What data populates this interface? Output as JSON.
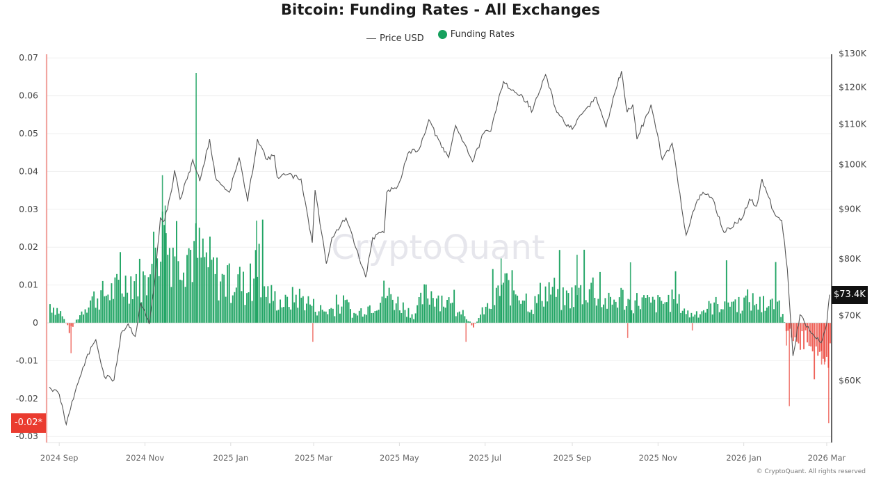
{
  "title": "Bitcoin: Funding Rates - All Exchanges",
  "legend": [
    {
      "label": "Price USD",
      "type": "line",
      "color": "#666666"
    },
    {
      "label": "Funding Rates",
      "type": "dot",
      "color": "#16a05d"
    }
  ],
  "watermark": "CryptoQuant",
  "copyright": "© CryptoQuant. All rights reserved",
  "badges": {
    "current_price": "$73.4K",
    "current_funding": "-0.02*"
  },
  "colors": {
    "positive": "#16a05d",
    "negative": "#ea3b2f",
    "price_line": "#555555",
    "left_axis_line": "#f1a5a0",
    "right_axis_line": "#222222",
    "grid": "#efefef"
  },
  "chart_data": {
    "type": "bar+line",
    "title": "Bitcoin: Funding Rates - All Exchanges",
    "x_range": [
      "2024 Aug",
      "2026 Mar"
    ],
    "x_ticks": [
      "2024 Sep",
      "2024 Nov",
      "2025 Jan",
      "2025 Mar",
      "2025 May",
      "2025 Jul",
      "2025 Sep",
      "2025 Nov",
      "2026 Jan",
      "2026 Mar"
    ],
    "left_axis": {
      "label": "Funding Rates",
      "ticks": [
        0.07,
        0.06,
        0.05,
        0.04,
        0.03,
        0.02,
        0.01,
        0,
        -0.01,
        -0.02,
        -0.03
      ],
      "ylim": [
        -0.031,
        0.07
      ]
    },
    "right_axis": {
      "label": "Price USD",
      "scale": "log",
      "ticks": [
        "$130K",
        "$120K",
        "$110K",
        "$100K",
        "$90K",
        "$80K",
        "$70K",
        "$60K"
      ],
      "tick_values": [
        130000,
        120000,
        110000,
        100000,
        90000,
        80000,
        70000,
        60000
      ]
    },
    "legend_position": "top",
    "grid": true,
    "series": [
      {
        "name": "Price USD",
        "type": "line",
        "points": [
          [
            "2024-08-25",
            59000
          ],
          [
            "2024-09-01",
            58000
          ],
          [
            "2024-09-06",
            54000
          ],
          [
            "2024-09-10",
            57000
          ],
          [
            "2024-09-20",
            63000
          ],
          [
            "2024-09-27",
            66000
          ],
          [
            "2024-10-03",
            60500
          ],
          [
            "2024-10-10",
            60000
          ],
          [
            "2024-10-15",
            67000
          ],
          [
            "2024-10-20",
            68500
          ],
          [
            "2024-10-25",
            66500
          ],
          [
            "2024-10-29",
            72000
          ],
          [
            "2024-11-04",
            68500
          ],
          [
            "2024-11-08",
            76000
          ],
          [
            "2024-11-12",
            88000
          ],
          [
            "2024-11-15",
            87500
          ],
          [
            "2024-11-20",
            94000
          ],
          [
            "2024-11-22",
            98500
          ],
          [
            "2024-11-26",
            92000
          ],
          [
            "2024-12-01",
            96500
          ],
          [
            "2024-12-05",
            101000
          ],
          [
            "2024-12-10",
            96000
          ],
          [
            "2024-12-17",
            106000
          ],
          [
            "2024-12-21",
            97000
          ],
          [
            "2024-12-26",
            95000
          ],
          [
            "2024-12-31",
            93500
          ],
          [
            "2025-01-07",
            101500
          ],
          [
            "2025-01-13",
            91500
          ],
          [
            "2025-01-20",
            106000
          ],
          [
            "2025-01-27",
            101000
          ],
          [
            "2025-02-01",
            102000
          ],
          [
            "2025-02-03",
            97000
          ],
          [
            "2025-02-10",
            97500
          ],
          [
            "2025-02-20",
            96500
          ],
          [
            "2025-02-25",
            88000
          ],
          [
            "2025-02-28",
            83000
          ],
          [
            "2025-03-02",
            94000
          ],
          [
            "2025-03-10",
            79000
          ],
          [
            "2025-03-14",
            84000
          ],
          [
            "2025-03-24",
            88000
          ],
          [
            "2025-03-31",
            82000
          ],
          [
            "2025-04-07",
            76500
          ],
          [
            "2025-04-12",
            84000
          ],
          [
            "2025-04-20",
            85000
          ],
          [
            "2025-04-22",
            93500
          ],
          [
            "2025-04-30",
            95000
          ],
          [
            "2025-05-08",
            103000
          ],
          [
            "2025-05-15",
            103500
          ],
          [
            "2025-05-22",
            111000
          ],
          [
            "2025-05-31",
            104000
          ],
          [
            "2025-06-05",
            101500
          ],
          [
            "2025-06-10",
            109500
          ],
          [
            "2025-06-17",
            104500
          ],
          [
            "2025-06-22",
            100500
          ],
          [
            "2025-06-30",
            107500
          ],
          [
            "2025-07-05",
            108000
          ],
          [
            "2025-07-11",
            117500
          ],
          [
            "2025-07-14",
            121500
          ],
          [
            "2025-07-22",
            118500
          ],
          [
            "2025-07-31",
            116000
          ],
          [
            "2025-08-03",
            113000
          ],
          [
            "2025-08-13",
            123500
          ],
          [
            "2025-08-20",
            114000
          ],
          [
            "2025-08-26",
            110500
          ],
          [
            "2025-09-01",
            108500
          ],
          [
            "2025-09-10",
            113500
          ],
          [
            "2025-09-18",
            117000
          ],
          [
            "2025-09-25",
            109000
          ],
          [
            "2025-10-01",
            118000
          ],
          [
            "2025-10-06",
            124500
          ],
          [
            "2025-10-10",
            113000
          ],
          [
            "2025-10-14",
            115000
          ],
          [
            "2025-10-17",
            106000
          ],
          [
            "2025-10-27",
            115000
          ],
          [
            "2025-11-04",
            101000
          ],
          [
            "2025-11-11",
            105000
          ],
          [
            "2025-11-21",
            84500
          ],
          [
            "2025-11-28",
            91000
          ],
          [
            "2025-12-03",
            93500
          ],
          [
            "2025-12-10",
            92000
          ],
          [
            "2025-12-18",
            85000
          ],
          [
            "2025-12-31",
            88000
          ],
          [
            "2026-01-05",
            92000
          ],
          [
            "2026-01-10",
            90500
          ],
          [
            "2026-01-14",
            96500
          ],
          [
            "2026-01-22",
            89500
          ],
          [
            "2026-01-28",
            87500
          ],
          [
            "2026-02-01",
            78000
          ],
          [
            "2026-02-05",
            63500
          ],
          [
            "2026-02-10",
            70000
          ],
          [
            "2026-02-18",
            67000
          ],
          [
            "2026-02-25",
            65500
          ],
          [
            "2026-03-01",
            68500
          ],
          [
            "2026-03-03",
            73400
          ]
        ]
      },
      {
        "name": "Funding Rates",
        "type": "bar",
        "positive_color": "#16a05d",
        "negative_color": "#ea3b2f",
        "peak": {
          "date": "2024-12-07",
          "value": 0.066
        },
        "trough": {
          "date": "2026-03-02",
          "value": -0.0265
        },
        "weekly_approx": [
          [
            "2024-08-25",
            0.005
          ],
          [
            "2024-09-01",
            0.003
          ],
          [
            "2024-09-08",
            -0.002
          ],
          [
            "2024-09-15",
            0.002
          ],
          [
            "2024-09-22",
            0.006
          ],
          [
            "2024-09-29",
            0.007
          ],
          [
            "2024-10-06",
            0.008
          ],
          [
            "2024-10-13",
            0.009
          ],
          [
            "2024-10-20",
            0.011
          ],
          [
            "2024-10-27",
            0.012
          ],
          [
            "2024-11-03",
            0.01
          ],
          [
            "2024-11-10",
            0.024
          ],
          [
            "2024-11-17",
            0.02
          ],
          [
            "2024-11-24",
            0.022
          ],
          [
            "2024-12-01",
            0.019
          ],
          [
            "2024-12-08",
            0.018
          ],
          [
            "2024-12-15",
            0.016
          ],
          [
            "2024-12-22",
            0.012
          ],
          [
            "2024-12-29",
            0.01
          ],
          [
            "2025-01-05",
            0.012
          ],
          [
            "2025-01-12",
            0.008
          ],
          [
            "2025-01-19",
            0.014
          ],
          [
            "2025-01-26",
            0.008
          ],
          [
            "2025-02-02",
            0.006
          ],
          [
            "2025-02-09",
            0.005
          ],
          [
            "2025-02-16",
            0.007
          ],
          [
            "2025-02-23",
            0.006
          ],
          [
            "2025-03-02",
            0.004
          ],
          [
            "2025-03-09",
            0.003
          ],
          [
            "2025-03-16",
            0.004
          ],
          [
            "2025-03-23",
            0.005
          ],
          [
            "2025-03-30",
            0.002
          ],
          [
            "2025-04-06",
            0.004
          ],
          [
            "2025-04-13",
            0.005
          ],
          [
            "2025-04-20",
            0.008
          ],
          [
            "2025-04-27",
            0.006
          ],
          [
            "2025-05-04",
            0.004
          ],
          [
            "2025-05-11",
            0.002
          ],
          [
            "2025-05-18",
            0.007
          ],
          [
            "2025-05-25",
            0.008
          ],
          [
            "2025-06-01",
            0.006
          ],
          [
            "2025-06-08",
            0.004
          ],
          [
            "2025-06-15",
            0.003
          ],
          [
            "2025-06-22",
            -0.001
          ],
          [
            "2025-06-29",
            0.003
          ],
          [
            "2025-07-06",
            0.005
          ],
          [
            "2025-07-13",
            0.01
          ],
          [
            "2025-07-20",
            0.009
          ],
          [
            "2025-07-27",
            0.008
          ],
          [
            "2025-08-03",
            0.004
          ],
          [
            "2025-08-10",
            0.008
          ],
          [
            "2025-08-17",
            0.009
          ],
          [
            "2025-08-24",
            0.006
          ],
          [
            "2025-08-31",
            0.007
          ],
          [
            "2025-09-07",
            0.008
          ],
          [
            "2025-09-14",
            0.01
          ],
          [
            "2025-09-21",
            0.006
          ],
          [
            "2025-09-28",
            0.005
          ],
          [
            "2025-10-05",
            0.007
          ],
          [
            "2025-10-12",
            0.005
          ],
          [
            "2025-10-19",
            0.006
          ],
          [
            "2025-10-26",
            0.005
          ],
          [
            "2025-11-02",
            0.005
          ],
          [
            "2025-11-09",
            0.006
          ],
          [
            "2025-11-16",
            0.005
          ],
          [
            "2025-11-23",
            0.002
          ],
          [
            "2025-11-30",
            0.003
          ],
          [
            "2025-12-07",
            0.004
          ],
          [
            "2025-12-14",
            0.005
          ],
          [
            "2025-12-21",
            0.006
          ],
          [
            "2025-12-28",
            0.005
          ],
          [
            "2026-01-04",
            0.006
          ],
          [
            "2026-01-11",
            0.005
          ],
          [
            "2026-01-18",
            0.004
          ],
          [
            "2026-01-25",
            0.006
          ],
          [
            "2026-02-01",
            -0.003
          ],
          [
            "2026-02-08",
            -0.005
          ],
          [
            "2026-02-15",
            -0.004
          ],
          [
            "2026-02-22",
            -0.006
          ],
          [
            "2026-03-01",
            -0.008
          ]
        ]
      }
    ],
    "annotations": [
      {
        "axis": "right",
        "label": "$73.4K",
        "meaning": "current price"
      },
      {
        "axis": "left",
        "label": "-0.02*",
        "meaning": "current funding rate"
      }
    ]
  }
}
